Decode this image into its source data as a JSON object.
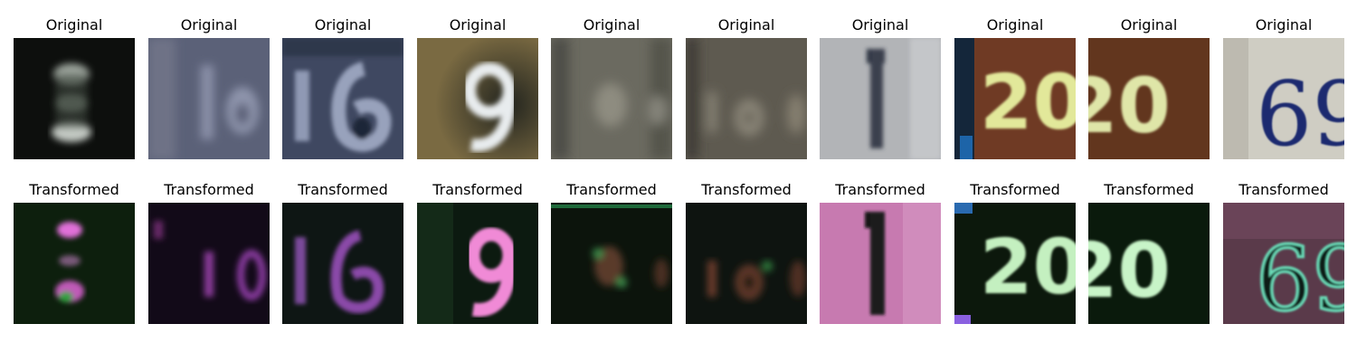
{
  "figure": {
    "original_label": "Original",
    "transformed_label": "Transformed",
    "originals": [
      {
        "digits": "8",
        "desc": "dark blurred digit"
      },
      {
        "digits": "16",
        "desc": "blurry blue-gray house number"
      },
      {
        "digits": "16",
        "desc": "blue-gray house number"
      },
      {
        "digits": "9",
        "desc": "white digit on brown"
      },
      {
        "digits": "2",
        "desc": "faint gray digit"
      },
      {
        "digits": "0",
        "desc": "faint gray digits"
      },
      {
        "digits": "1",
        "desc": "dark digit on light gray"
      },
      {
        "digits": "20",
        "desc": "yellow digits on brown"
      },
      {
        "digits": "20",
        "desc": "yellow digits on brown"
      },
      {
        "digits": "69",
        "desc": "blue serif digits on light background"
      }
    ],
    "transformed": [
      {
        "digits": "8"
      },
      {
        "digits": "16"
      },
      {
        "digits": "16"
      },
      {
        "digits": "9"
      },
      {
        "digits": "2"
      },
      {
        "digits": "0"
      },
      {
        "digits": "1"
      },
      {
        "digits": "20"
      },
      {
        "digits": "20"
      },
      {
        "digits": "69"
      }
    ],
    "colors": {
      "background": "#ffffff",
      "title_text": "#000000"
    }
  }
}
